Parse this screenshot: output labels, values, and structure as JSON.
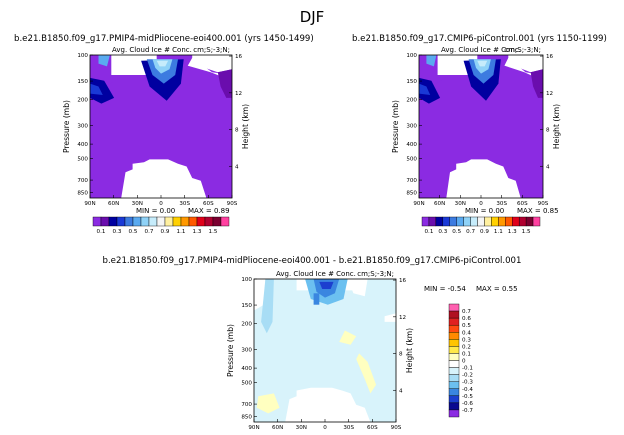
{
  "page": {
    "season_title": "DJF",
    "panel_a_title": "b.e21.B1850.f09_g17.PMIP4-midPliocene-eoi400.001  (yrs 1450-1499)",
    "panel_b_title": "b.e21.B1850.f09_g17.CMIP6-piControl.001  (yrs 1150-1199)",
    "panel_c_title": "b.e21.B1850.f09_g17.PMIP4-midPliocene-eoi400.001  -  b.e21.B1850.f09_g17.CMIP6-piControl.001"
  },
  "chart_data": [
    {
      "type": "heatmap",
      "title": "b.e21.B1850.f09_g17.PMIP4-midPliocene-eoi400.001  (yrs 1450-1499)",
      "field_label": "Avg. Cloud Ice # Conc.",
      "units_label": "cm;S;-3;N;",
      "xlabel": "",
      "ylabel": "Pressure (mb)",
      "ylabel_right": "Height (km)",
      "x_ticks": [
        "90N",
        "60N",
        "30N",
        "0",
        "30S",
        "60S",
        "90S"
      ],
      "y_ticks": [
        "100",
        "150",
        "200",
        "300",
        "400",
        "500",
        "700",
        "850"
      ],
      "height_ticks": [
        "16",
        "12",
        "8",
        "4"
      ],
      "min_text": "MIN =    0.00",
      "max_text": "MAX =    0.89",
      "min": 0.0,
      "max": 0.89,
      "colorbar_levels": [
        "0.1",
        "0.3",
        "0.5",
        "0.7",
        "0.9",
        "1.1",
        "1.3",
        "1.5"
      ],
      "colorbar_colors": [
        "#8b2be2",
        "#6a0dad",
        "#0000a0",
        "#1a39d6",
        "#3c7be0",
        "#5aaaf0",
        "#8fd2f7",
        "#c6ecfb",
        "#f5f5f5",
        "#fff0a0",
        "#ffd000",
        "#ff9900",
        "#ff5a00",
        "#e0001a",
        "#b00030",
        "#7a0030",
        "#ff40a0"
      ]
    },
    {
      "type": "heatmap",
      "title": "b.e21.B1850.f09_g17.CMIP6-piControl.001  (yrs 1150-1199)",
      "field_label": "Avg. Cloud Ice # Conc.",
      "units_label": "cm;S;-3;N;",
      "xlabel": "",
      "ylabel": "Pressure (mb)",
      "ylabel_right": "Height (km)",
      "x_ticks": [
        "90N",
        "60N",
        "30N",
        "0",
        "30S",
        "60S",
        "90S"
      ],
      "y_ticks": [
        "100",
        "150",
        "200",
        "300",
        "400",
        "500",
        "700",
        "850"
      ],
      "height_ticks": [
        "16",
        "12",
        "8",
        "4"
      ],
      "min_text": "MIN =    0.00",
      "max_text": "MAX =    0.85",
      "min": 0.0,
      "max": 0.85,
      "colorbar_levels": [
        "0.1",
        "0.3",
        "0.5",
        "0.7",
        "0.9",
        "1.1",
        "1.3",
        "1.5"
      ]
    },
    {
      "type": "heatmap",
      "title": "b.e21.B1850.f09_g17.PMIP4-midPliocene-eoi400.001  -  b.e21.B1850.f09_g17.CMIP6-piControl.001",
      "field_label": "Avg. Cloud Ice # Conc.",
      "units_label": "cm;S;-3;N;",
      "xlabel": "",
      "ylabel": "Pressure (mb)",
      "ylabel_right": "Height (km)",
      "x_ticks": [
        "90N",
        "60N",
        "30N",
        "0",
        "30S",
        "60S",
        "90S"
      ],
      "y_ticks": [
        "100",
        "150",
        "200",
        "300",
        "400",
        "500",
        "700",
        "850"
      ],
      "height_ticks": [
        "16",
        "12",
        "8",
        "4"
      ],
      "min_text": "MIN =   -0.54",
      "max_text": "MAX =    0.55",
      "min": -0.54,
      "max": 0.55,
      "colorbar_levels": [
        "0.7",
        "0.6",
        "0.5",
        "0.4",
        "0.3",
        "0.2",
        "0.1",
        "0",
        "-0.1",
        "-0.2",
        "-0.3",
        "-0.4",
        "-0.5",
        "-0.6",
        "-0.7"
      ],
      "colorbar_colors": [
        "#ff60b0",
        "#b01020",
        "#e02020",
        "#ff4a10",
        "#ff8a00",
        "#ffc400",
        "#ffe94a",
        "#ffffc0",
        "#ffffff",
        "#d8f3fb",
        "#a8ddf5",
        "#6cc0f0",
        "#3a86e0",
        "#1c3fcf",
        "#0a0a90",
        "#8b2be2"
      ]
    }
  ]
}
